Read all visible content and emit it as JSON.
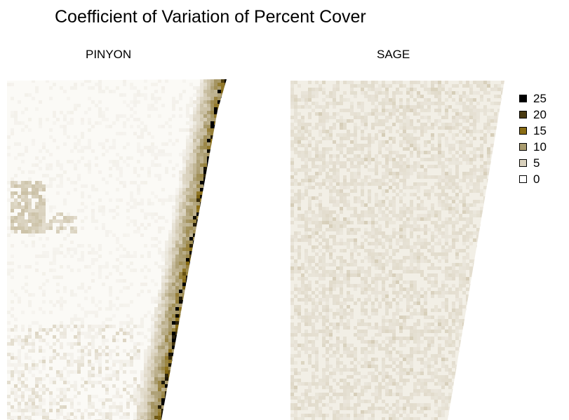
{
  "chart_data": {
    "type": "heatmap",
    "title": "Coefficient of Variation of Percent Cover",
    "panels": [
      {
        "name": "PINYON",
        "description_of_field": "mostly low variation (white/light beige) across the extent, with a band of high variation (dark brown/black) along the right edge and a beige patch on the left side"
      },
      {
        "name": "SAGE",
        "description_of_field": "uniformly low variation (light beige, values mostly 0-5)"
      }
    ],
    "legend": {
      "placement": "right",
      "entries": [
        {
          "label": "25",
          "color": "#000000"
        },
        {
          "label": "20",
          "color": "#4a3b12"
        },
        {
          "label": "15",
          "color": "#8a6d14"
        },
        {
          "label": "10",
          "color": "#a99b6e"
        },
        {
          "label": "5",
          "color": "#d9d1bd"
        },
        {
          "label": "0",
          "color": "#ffffff"
        }
      ]
    },
    "value_range": [
      0,
      25
    ]
  }
}
